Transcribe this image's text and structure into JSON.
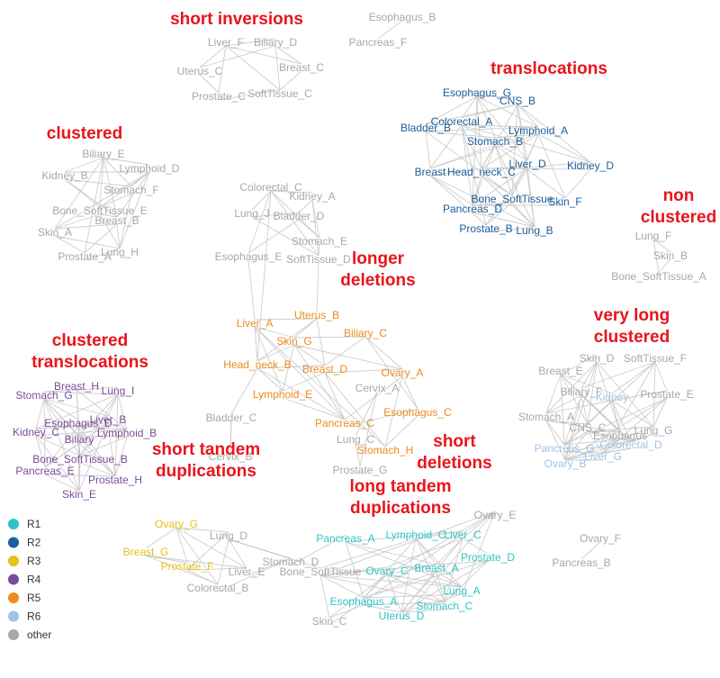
{
  "colors": {
    "R1": "#2ec4c6",
    "R2": "#1a5e9a",
    "R3": "#e3c21a",
    "R4": "#7a4c9a",
    "R5": "#ee8a1e",
    "R6": "#9cc4e8",
    "other": "#a8a8a8",
    "title": "#e8141b"
  },
  "legend": [
    {
      "key": "R1",
      "label": "R1"
    },
    {
      "key": "R2",
      "label": "R2"
    },
    {
      "key": "R3",
      "label": "R3"
    },
    {
      "key": "R4",
      "label": "R4"
    },
    {
      "key": "R5",
      "label": "R5"
    },
    {
      "key": "R6",
      "label": "R6"
    },
    {
      "key": "other",
      "label": "other"
    }
  ],
  "clusters": [
    {
      "id": "short_inversions",
      "title": [
        "short inversions"
      ],
      "nodes": [
        {
          "label": "Liver_F",
          "group": "other"
        },
        {
          "label": "Biliary_D",
          "group": "other"
        },
        {
          "label": "Uterus_C",
          "group": "other"
        },
        {
          "label": "Breast_C",
          "group": "other"
        },
        {
          "label": "Prostate_C",
          "group": "other"
        },
        {
          "label": "SoftTissue_C",
          "group": "other"
        }
      ]
    },
    {
      "id": "esophagus_pancreas",
      "title": [],
      "nodes": [
        {
          "label": "Esophagus_B",
          "group": "other"
        },
        {
          "label": "Pancreas_F",
          "group": "other"
        }
      ]
    },
    {
      "id": "translocations",
      "title": [
        "translocations"
      ],
      "nodes": [
        {
          "label": "Esophagus_G",
          "group": "R2"
        },
        {
          "label": "CNS_B",
          "group": "R2"
        },
        {
          "label": "Colorectal_A",
          "group": "R2"
        },
        {
          "label": "Bladder_B",
          "group": "R2"
        },
        {
          "label": "Lymphoid_A",
          "group": "R2"
        },
        {
          "label": "Stomach_B",
          "group": "R2"
        },
        {
          "label": "Liver_D",
          "group": "R2"
        },
        {
          "label": "Kidney_D",
          "group": "R2"
        },
        {
          "label": "Breast",
          "group": "R2"
        },
        {
          "label": "Head_neck_C",
          "group": "R2"
        },
        {
          "label": "Bone_SoftTissue",
          "group": "R2"
        },
        {
          "label": "Skin_F",
          "group": "R2"
        },
        {
          "label": "Pancreas_D",
          "group": "R2"
        },
        {
          "label": "Prostate_B",
          "group": "R2"
        },
        {
          "label": "Lung_B",
          "group": "R2"
        }
      ]
    },
    {
      "id": "clustered",
      "title": [
        "clustered"
      ],
      "nodes": [
        {
          "label": "Biliary_E",
          "group": "other"
        },
        {
          "label": "Lymphoid_D",
          "group": "other"
        },
        {
          "label": "Kidney_B",
          "group": "other"
        },
        {
          "label": "Stomach_F",
          "group": "other"
        },
        {
          "label": "Bone_SoftTissue_E",
          "group": "other"
        },
        {
          "label": "Breast_B",
          "group": "other"
        },
        {
          "label": "Skin_A",
          "group": "other"
        },
        {
          "label": "Prostate_A",
          "group": "other"
        },
        {
          "label": "Lung_H",
          "group": "other"
        }
      ]
    },
    {
      "id": "upper_middle",
      "title": [],
      "nodes": [
        {
          "label": "Colorectal_C",
          "group": "other"
        },
        {
          "label": "Kidney_A",
          "group": "other"
        },
        {
          "label": "Lung_J",
          "group": "other"
        },
        {
          "label": "Bladder_D",
          "group": "other"
        },
        {
          "label": "Stomach_E",
          "group": "other"
        },
        {
          "label": "Esophagus_E",
          "group": "other"
        },
        {
          "label": "SoftTissue_D",
          "group": "other"
        }
      ]
    },
    {
      "id": "non_clustered",
      "title": [
        "non",
        "clustered"
      ],
      "nodes": [
        {
          "label": "Lung_F",
          "group": "other"
        },
        {
          "label": "Skin_B",
          "group": "other"
        },
        {
          "label": "Bone_SoftTissue_A",
          "group": "other"
        }
      ]
    },
    {
      "id": "longer_deletions",
      "title": [
        "longer",
        "deletions"
      ],
      "nodes": [
        {
          "label": "Uterus_B",
          "group": "R5"
        },
        {
          "label": "Liver_A",
          "group": "R5"
        },
        {
          "label": "Biliary_C",
          "group": "R5"
        },
        {
          "label": "Skin_G",
          "group": "R5"
        },
        {
          "label": "Head_neck_B",
          "group": "R5"
        },
        {
          "label": "Breast_D",
          "group": "R5"
        },
        {
          "label": "Ovary_A",
          "group": "R5"
        },
        {
          "label": "Lymphoid_E",
          "group": "R5"
        },
        {
          "label": "Pancreas_C",
          "group": "R5"
        },
        {
          "label": "Esophagus_C",
          "group": "R5"
        },
        {
          "label": "Stomach_H",
          "group": "R5"
        }
      ]
    },
    {
      "id": "short_deletions",
      "title": [
        "short",
        "deletions"
      ],
      "nodes": [
        {
          "label": "Cervix_A",
          "group": "other"
        },
        {
          "label": "Lung_C",
          "group": "other"
        },
        {
          "label": "Prostate_G",
          "group": "other"
        }
      ]
    },
    {
      "id": "bladder_cervix",
      "title": [],
      "nodes": [
        {
          "label": "Bladder_C",
          "group": "other"
        },
        {
          "label": "Cervix_B",
          "group": "other"
        }
      ]
    },
    {
      "id": "very_long_clustered",
      "title": [
        "very long",
        "clustered"
      ],
      "nodes": [
        {
          "label": "Breast_E",
          "group": "other"
        },
        {
          "label": "Skin_D",
          "group": "other"
        },
        {
          "label": "SoftTissue_F",
          "group": "other"
        },
        {
          "label": "Biliary_F",
          "group": "other"
        },
        {
          "label": "Kidney",
          "group": "R6"
        },
        {
          "label": "Prostate_E",
          "group": "other"
        },
        {
          "label": "Stomach_A",
          "group": "other"
        },
        {
          "label": "CNS_C",
          "group": "other"
        },
        {
          "label": "Esophagus",
          "group": "other"
        },
        {
          "label": "Lung_G",
          "group": "other"
        },
        {
          "label": "Pancreas_G",
          "group": "R6"
        },
        {
          "label": "Colorectal_D",
          "group": "R6"
        },
        {
          "label": "Liver_G",
          "group": "R6"
        },
        {
          "label": "Ovary_B",
          "group": "R6"
        }
      ]
    },
    {
      "id": "clustered_translocations",
      "title": [
        "clustered",
        "translocations"
      ],
      "nodes": [
        {
          "label": "Breast_H",
          "group": "R4"
        },
        {
          "label": "Lung_I",
          "group": "R4"
        },
        {
          "label": "Stomach_G",
          "group": "R4"
        },
        {
          "label": "Esophagus_D",
          "group": "R4"
        },
        {
          "label": "Liver_B",
          "group": "R4"
        },
        {
          "label": "Kidney_C",
          "group": "R4"
        },
        {
          "label": "Lymphoid_B",
          "group": "R4"
        },
        {
          "label": "Biliary",
          "group": "R4"
        },
        {
          "label": "Bone_SoftTissue_B",
          "group": "R4"
        },
        {
          "label": "Pancreas_E",
          "group": "R4"
        },
        {
          "label": "Prostate_H",
          "group": "R4"
        },
        {
          "label": "Skin_E",
          "group": "R4"
        }
      ]
    },
    {
      "id": "short_tandem_duplications",
      "title": [
        "short tandem",
        "duplications"
      ],
      "nodes": [
        {
          "label": "Ovary_G",
          "group": "R3"
        },
        {
          "label": "Breast_G",
          "group": "R3"
        },
        {
          "label": "Prostate_F",
          "group": "R3"
        },
        {
          "label": "Lung_D",
          "group": "other"
        },
        {
          "label": "Liver_E",
          "group": "other"
        },
        {
          "label": "Colorectal_B",
          "group": "other"
        },
        {
          "label": "Stomach_D",
          "group": "other"
        }
      ]
    },
    {
      "id": "long_tandem_duplications",
      "title": [
        "long tandem",
        "duplications"
      ],
      "nodes": [
        {
          "label": "Pancreas_A",
          "group": "R1"
        },
        {
          "label": "Lymphoid_C",
          "group": "R1"
        },
        {
          "label": "Liver_C",
          "group": "R1"
        },
        {
          "label": "Prostate_D",
          "group": "R1"
        },
        {
          "label": "Bone_SoftTissue",
          "group": "other"
        },
        {
          "label": "Ovary_C",
          "group": "R1"
        },
        {
          "label": "Breast_A",
          "group": "R1"
        },
        {
          "label": "Lung_A",
          "group": "R1"
        },
        {
          "label": "Esophagus_A",
          "group": "R1"
        },
        {
          "label": "Stomach_C",
          "group": "R1"
        },
        {
          "label": "Uterus_D",
          "group": "R1"
        },
        {
          "label": "Skin_C",
          "group": "other"
        },
        {
          "label": "Ovary_E",
          "group": "other"
        }
      ]
    },
    {
      "id": "ovary_pancreas",
      "title": [],
      "nodes": [
        {
          "label": "Ovary_F",
          "group": "other"
        },
        {
          "label": "Pancreas_B",
          "group": "other"
        }
      ]
    }
  ]
}
